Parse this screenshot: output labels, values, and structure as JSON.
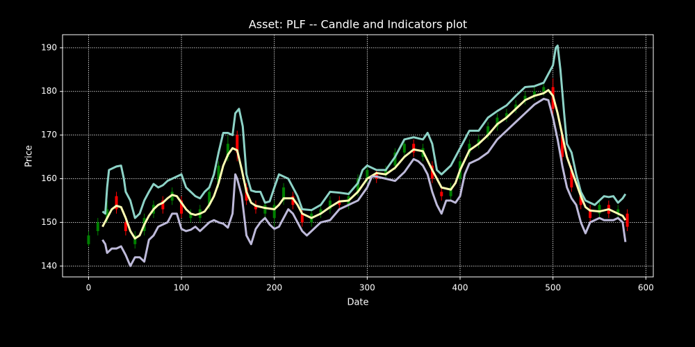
{
  "chart_data": {
    "type": "candlestick",
    "title": "Asset: PLF -- Candle and Indicators plot",
    "xlabel": "Date",
    "ylabel": "Price",
    "xlim": [
      -28,
      608
    ],
    "ylim": [
      137.5,
      193
    ],
    "xticks": [
      0,
      100,
      200,
      300,
      400,
      500,
      600
    ],
    "yticks": [
      140,
      150,
      160,
      170,
      180,
      190
    ],
    "grid": true,
    "candles": {
      "up_color": "#008000",
      "down_color": "#ff0000",
      "x": [
        0,
        10,
        20,
        30,
        40,
        50,
        60,
        70,
        80,
        90,
        100,
        110,
        120,
        130,
        140,
        150,
        160,
        170,
        180,
        190,
        200,
        210,
        220,
        230,
        240,
        250,
        260,
        270,
        280,
        290,
        300,
        310,
        320,
        330,
        340,
        350,
        360,
        370,
        380,
        390,
        400,
        410,
        420,
        430,
        440,
        450,
        460,
        470,
        480,
        490,
        500,
        510,
        520,
        530,
        540,
        550,
        560,
        570,
        580
      ],
      "open": [
        145,
        148,
        151,
        156,
        150,
        145,
        148,
        152,
        155,
        155,
        155,
        151,
        151,
        154,
        159,
        165,
        170,
        158,
        154,
        152,
        151,
        155,
        156,
        152,
        150,
        152,
        153,
        155,
        154,
        157,
        160,
        161,
        161,
        163,
        166,
        168,
        165,
        163,
        157,
        156,
        160,
        166,
        168,
        170,
        172,
        174,
        176,
        178,
        179,
        180,
        181,
        170,
        162,
        156,
        153,
        152,
        154,
        152,
        152
      ],
      "close": [
        147,
        150,
        153,
        153,
        148,
        147,
        151,
        154,
        153,
        157,
        152,
        152,
        153,
        157,
        163,
        168,
        166,
        155,
        153,
        154,
        154,
        158,
        154,
        150,
        152,
        153,
        155,
        154,
        156,
        160,
        162,
        160,
        162,
        166,
        168,
        166,
        167,
        160,
        156,
        158,
        164,
        168,
        169,
        172,
        174,
        175,
        177,
        179,
        180,
        181,
        176,
        165,
        158,
        154,
        151,
        154,
        152,
        153,
        149
      ],
      "high": [
        148,
        151,
        155,
        157,
        151,
        148,
        152,
        155,
        156,
        158,
        156,
        153,
        154,
        158,
        164,
        170,
        171,
        159,
        155,
        155,
        155,
        159,
        157,
        153,
        153,
        154,
        156,
        156,
        157,
        161,
        163,
        162,
        163,
        167,
        169,
        169,
        168,
        164,
        158,
        159,
        165,
        169,
        170,
        173,
        175,
        176,
        178,
        180,
        181,
        182,
        183,
        171,
        163,
        157,
        154,
        155,
        155,
        154,
        153
      ],
      "low": [
        144.5,
        147,
        150,
        152,
        147,
        144,
        147,
        151,
        152,
        154,
        151,
        150,
        150,
        153,
        158,
        164,
        164,
        154,
        152,
        151,
        149,
        154,
        153,
        149,
        149,
        151,
        152,
        153,
        153,
        156,
        159,
        159,
        160,
        162,
        165,
        165,
        164,
        159,
        155,
        155,
        159,
        165,
        167,
        169,
        171,
        173,
        175,
        177,
        178,
        179,
        174,
        163,
        157,
        153,
        150,
        151,
        151,
        151,
        148
      ]
    },
    "series": [
      {
        "color": "#8dd3c7",
        "x": [
          15,
          18,
          20,
          22,
          30,
          35,
          38,
          40,
          45,
          50,
          55,
          60,
          65,
          70,
          75,
          80,
          85,
          90,
          95,
          100,
          105,
          110,
          115,
          120,
          125,
          130,
          135,
          140,
          145,
          150,
          155,
          158,
          162,
          166,
          170,
          175,
          180,
          185,
          190,
          195,
          200,
          205,
          210,
          215,
          220,
          225,
          230,
          240,
          250,
          260,
          270,
          280,
          290,
          295,
          300,
          310,
          320,
          330,
          340,
          350,
          360,
          365,
          370,
          375,
          380,
          390,
          395,
          400,
          410,
          420,
          430,
          440,
          450,
          460,
          470,
          480,
          490,
          495,
          500,
          503,
          505,
          508,
          512,
          515,
          520,
          525,
          530,
          535,
          540,
          545,
          550,
          555,
          560,
          565,
          570,
          575,
          578
        ],
        "values": [
          152.5,
          152,
          158,
          162,
          162.8,
          163,
          160,
          157,
          155,
          151,
          152,
          155,
          157,
          158.8,
          158,
          158.5,
          159.5,
          160,
          160.5,
          161,
          158,
          157,
          156,
          155.5,
          157,
          158,
          161,
          166,
          170.5,
          170.5,
          170,
          175,
          176,
          172,
          161,
          157.3,
          157,
          157,
          154.5,
          154.8,
          158,
          161,
          160.5,
          160,
          158,
          156,
          153,
          152.8,
          154,
          157,
          156.8,
          156.5,
          159,
          162,
          163,
          162,
          162,
          165,
          169,
          169.5,
          169,
          170.5,
          168,
          162,
          161,
          163,
          165,
          167,
          171,
          171,
          174,
          175.5,
          176.8,
          179,
          181,
          181.2,
          182,
          184,
          186,
          190,
          190.5,
          185,
          175,
          168,
          166,
          161,
          157,
          155,
          154.5,
          154,
          155,
          156,
          155.8,
          156,
          154.5,
          155.5,
          156.5
        ]
      },
      {
        "color": "#ffffb3",
        "x": [
          15,
          20,
          25,
          30,
          35,
          40,
          45,
          50,
          55,
          60,
          65,
          70,
          75,
          80,
          85,
          90,
          95,
          100,
          105,
          110,
          115,
          120,
          125,
          130,
          135,
          140,
          145,
          150,
          155,
          160,
          165,
          170,
          175,
          180,
          190,
          200,
          205,
          210,
          220,
          225,
          230,
          240,
          250,
          260,
          270,
          280,
          290,
          300,
          310,
          320,
          330,
          340,
          350,
          360,
          370,
          380,
          390,
          395,
          400,
          410,
          420,
          430,
          440,
          450,
          460,
          470,
          480,
          490,
          495,
          500,
          505,
          510,
          515,
          520,
          530,
          535,
          540,
          550,
          560,
          570,
          575,
          578
        ],
        "values": [
          149,
          151,
          153,
          153.8,
          153.5,
          151,
          148,
          146.3,
          147,
          149.5,
          151.5,
          153,
          154,
          154.5,
          155.5,
          156.3,
          156,
          154.5,
          153,
          152,
          151.7,
          152,
          152.5,
          154,
          156,
          159,
          163,
          165.5,
          167,
          166.5,
          162,
          157,
          154.5,
          153.8,
          153.3,
          153,
          154,
          155.5,
          155.5,
          154,
          152,
          151,
          152,
          153.5,
          154.8,
          155,
          157,
          160,
          161.3,
          161,
          162.5,
          165,
          166.7,
          166.3,
          162,
          158,
          157.5,
          159,
          162,
          166.5,
          168,
          170,
          172.5,
          174,
          176,
          178,
          179,
          179.6,
          180.3,
          179,
          175,
          170,
          165,
          162,
          156,
          153.5,
          152.7,
          152.5,
          153,
          152,
          151.5,
          150.5
        ]
      },
      {
        "color": "#bebada",
        "x": [
          15,
          18,
          20,
          25,
          30,
          35,
          40,
          45,
          50,
          55,
          60,
          65,
          70,
          75,
          80,
          85,
          90,
          95,
          100,
          105,
          110,
          115,
          120,
          125,
          130,
          135,
          140,
          145,
          150,
          155,
          158,
          160,
          165,
          170,
          175,
          180,
          185,
          190,
          195,
          200,
          205,
          210,
          215,
          220,
          225,
          230,
          235,
          240,
          250,
          260,
          270,
          280,
          290,
          300,
          305,
          310,
          320,
          330,
          340,
          345,
          350,
          355,
          360,
          365,
          370,
          375,
          380,
          385,
          390,
          395,
          400,
          405,
          410,
          420,
          430,
          440,
          450,
          460,
          470,
          480,
          490,
          495,
          500,
          505,
          510,
          515,
          520,
          525,
          530,
          535,
          540,
          545,
          550,
          555,
          560,
          565,
          570,
          575,
          578
        ],
        "values": [
          146,
          145,
          143,
          144,
          144,
          144.5,
          142.5,
          140,
          142,
          142,
          141,
          146,
          147,
          149,
          149.5,
          150,
          152,
          152,
          148.5,
          148,
          148.3,
          149,
          148,
          149,
          150,
          150.5,
          150,
          149.7,
          148.8,
          152,
          161,
          160,
          156,
          147,
          145,
          148.5,
          150,
          151,
          149.5,
          148.5,
          149,
          151,
          153,
          152,
          150,
          148,
          147,
          148,
          150,
          150.5,
          153,
          154,
          155,
          158,
          160.5,
          160.5,
          160,
          159.5,
          161.5,
          163,
          164.5,
          164,
          163,
          161,
          157,
          154,
          152,
          155,
          155,
          154.5,
          156,
          161,
          163.5,
          164.5,
          166,
          169,
          171,
          173,
          175,
          177,
          178.3,
          178,
          174,
          169,
          163,
          158,
          155.5,
          154,
          150,
          147.5,
          150,
          150.5,
          151,
          150.5,
          150.5,
          150.5,
          151,
          150,
          145.5
        ]
      }
    ]
  }
}
